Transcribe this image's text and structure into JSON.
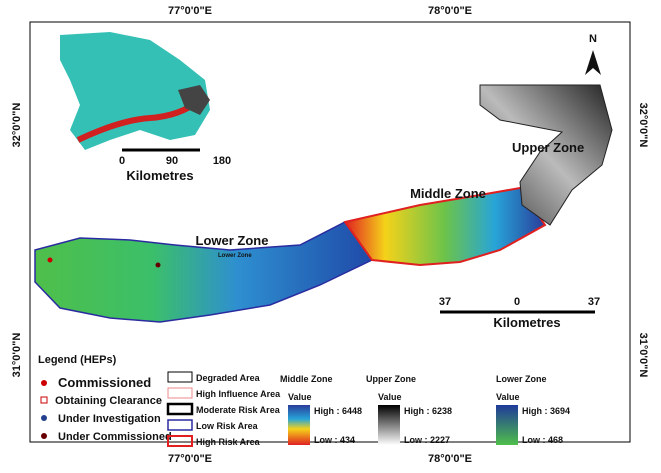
{
  "graticule": {
    "top": [
      "77°0'0\"E",
      "78°0'0\"E"
    ],
    "bottom": [
      "77°0'0\"E",
      "78°0'0\"E"
    ],
    "left": [
      "32°0'0\"N",
      "31°0'0\"N"
    ],
    "right": [
      "32°0'0\"N",
      "31°0'0\"N"
    ]
  },
  "north": "N",
  "zones": {
    "upper": "Upper Zone",
    "middle": "Middle Zone",
    "lower": "Lower Zone",
    "lower_small": "Lower Zone"
  },
  "inset_scale": {
    "ticks": [
      "0",
      "90",
      "180"
    ],
    "unit": "Kilometres"
  },
  "main_scale": {
    "ticks": [
      "37",
      "0",
      "37"
    ],
    "unit": "Kilometres"
  },
  "legend": {
    "title": "Legend (HEPs)",
    "points": [
      "Commissioned",
      "Obtaining Clearance",
      "Under Investigation",
      "Under Commissioned"
    ]
  },
  "areas": [
    "Degraded Area",
    "High Influence Area",
    "Moderate Risk Area",
    "Low Risk Area",
    "High Risk Area"
  ],
  "ramps": [
    {
      "title": "Middle Zone",
      "value": "Value",
      "high": "High : 6448",
      "low": "Low : 434"
    },
    {
      "title": "Upper Zone",
      "value": "Value",
      "high": "High : 6238",
      "low": "Low : 2227"
    },
    {
      "title": "Lower Zone",
      "value": "Value",
      "high": "High : 3694",
      "low": "Low : 468"
    }
  ]
}
